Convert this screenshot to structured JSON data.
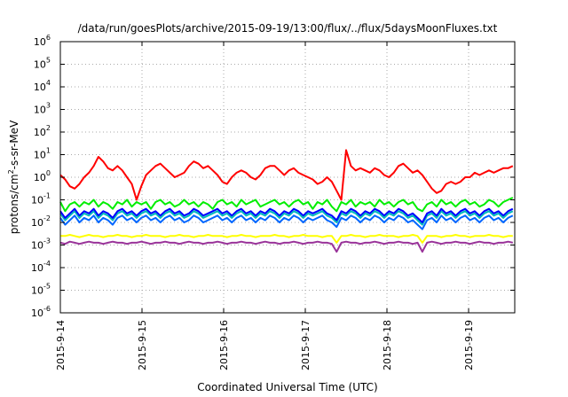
{
  "chart_data": {
    "type": "line",
    "title": "/data/run/goesPlots/archive/2015-09-19/13:00/flux/../flux/5daysMoonFluxes.txt",
    "xlabel": "Coordinated Universal Time (UTC)",
    "ylabel_base": "protons/cm",
    "ylabel_sup": "2",
    "ylabel_rest": "-s-sr-MeV",
    "yscale": "log",
    "ylim_exp": [
      -6,
      6
    ],
    "y_tick_base": "10",
    "y_tick_exponents": [
      "-6",
      "-5",
      "-4",
      "-3",
      "-2",
      "-1",
      "0",
      "1",
      "2",
      "3",
      "4",
      "5",
      "6"
    ],
    "x_range_days": [
      "2015-9-14",
      "2015-9-19 13:00"
    ],
    "x_tick_labels": [
      "2015-9-14",
      "2015-9-15",
      "2015-9-16",
      "2015-9-17",
      "2015-9-18",
      "2015-9-19"
    ],
    "grid": true,
    "legend": "none",
    "series": [
      {
        "color": "#ff0000",
        "log10_values": [
          0.1,
          -0.1,
          -0.4,
          -0.5,
          -0.3,
          0,
          0.2,
          0.5,
          0.9,
          0.7,
          0.4,
          0.3,
          0.5,
          0.3,
          0,
          -0.3,
          -1.0,
          -0.4,
          0.1,
          0.3,
          0.5,
          0.6,
          0.4,
          0.2,
          0,
          0.1,
          0.2,
          0.5,
          0.7,
          0.6,
          0.4,
          0.5,
          0.3,
          0.1,
          -0.2,
          -0.3,
          0,
          0.2,
          0.3,
          0.2,
          0,
          -0.1,
          0.1,
          0.4,
          0.5,
          0.5,
          0.3,
          0.1,
          0.3,
          0.4,
          0.2,
          0.1,
          0,
          -0.1,
          -0.3,
          -0.2,
          0,
          -0.2,
          -0.6,
          -1.0,
          1.2,
          0.5,
          0.3,
          0.4,
          0.3,
          0.2,
          0.4,
          0.3,
          0.1,
          0,
          0.2,
          0.5,
          0.6,
          0.4,
          0.2,
          0.3,
          0.1,
          -0.2,
          -0.5,
          -0.7,
          -0.6,
          -0.3,
          -0.2,
          -0.3,
          -0.2,
          0,
          0,
          0.2,
          0.1,
          0.2,
          0.3,
          0.2,
          0.3,
          0.4,
          0.4,
          0.5
        ]
      },
      {
        "color": "#00ee00",
        "log10_values": [
          -1.1,
          -1.5,
          -1.2,
          -1.1,
          -1.3,
          -1.1,
          -1.2,
          -1.0,
          -1.3,
          -1.1,
          -1.2,
          -1.4,
          -1.1,
          -1.2,
          -1.0,
          -1.3,
          -1.1,
          -1.2,
          -1.1,
          -1.4,
          -1.1,
          -1.0,
          -1.2,
          -1.1,
          -1.3,
          -1.2,
          -1.0,
          -1.2,
          -1.1,
          -1.3,
          -1.1,
          -1.2,
          -1.4,
          -1.1,
          -1.0,
          -1.2,
          -1.1,
          -1.3,
          -1.0,
          -1.2,
          -1.1,
          -1.0,
          -1.3,
          -1.2,
          -1.1,
          -1.0,
          -1.2,
          -1.1,
          -1.3,
          -1.1,
          -1.0,
          -1.2,
          -1.1,
          -1.4,
          -1.1,
          -1.2,
          -1.0,
          -1.3,
          -1.5,
          -1.1,
          -1.2,
          -1.0,
          -1.3,
          -1.1,
          -1.2,
          -1.1,
          -1.3,
          -1.0,
          -1.2,
          -1.1,
          -1.3,
          -1.1,
          -1.0,
          -1.2,
          -1.1,
          -1.4,
          -1.5,
          -1.2,
          -1.1,
          -1.3,
          -1.0,
          -1.2,
          -1.1,
          -1.3,
          -1.1,
          -1.0,
          -1.2,
          -1.1,
          -1.3,
          -1.2,
          -1.0,
          -1.1,
          -1.3,
          -1.1,
          -1.0,
          -0.9
        ]
      },
      {
        "color": "#00bbbb",
        "log10_values": [
          -1.6,
          -1.9,
          -1.7,
          -1.5,
          -1.8,
          -1.6,
          -1.7,
          -1.5,
          -1.8,
          -1.6,
          -1.7,
          -1.9,
          -1.6,
          -1.5,
          -1.7,
          -1.6,
          -1.8,
          -1.6,
          -1.5,
          -1.7,
          -1.6,
          -1.8,
          -1.6,
          -1.5,
          -1.7,
          -1.6,
          -1.8,
          -1.7,
          -1.5,
          -1.6,
          -1.8,
          -1.7,
          -1.6,
          -1.5,
          -1.7,
          -1.6,
          -1.8,
          -1.6,
          -1.5,
          -1.7,
          -1.6,
          -1.8,
          -1.6,
          -1.7,
          -1.5,
          -1.6,
          -1.8,
          -1.6,
          -1.7,
          -1.5,
          -1.6,
          -1.8,
          -1.6,
          -1.7,
          -1.6,
          -1.5,
          -1.7,
          -1.8,
          -2.0,
          -1.6,
          -1.7,
          -1.5,
          -1.6,
          -1.8,
          -1.6,
          -1.7,
          -1.5,
          -1.6,
          -1.8,
          -1.6,
          -1.7,
          -1.5,
          -1.6,
          -1.8,
          -1.7,
          -1.9,
          -2.1,
          -1.7,
          -1.6,
          -1.8,
          -1.5,
          -1.7,
          -1.6,
          -1.8,
          -1.6,
          -1.5,
          -1.7,
          -1.6,
          -1.8,
          -1.6,
          -1.5,
          -1.7,
          -1.6,
          -1.8,
          -1.6,
          -1.5
        ]
      },
      {
        "color": "#0000ff",
        "log10_values": [
          -1.5,
          -1.8,
          -1.6,
          -1.4,
          -1.7,
          -1.5,
          -1.6,
          -1.4,
          -1.7,
          -1.5,
          -1.6,
          -1.8,
          -1.5,
          -1.4,
          -1.6,
          -1.5,
          -1.7,
          -1.5,
          -1.4,
          -1.6,
          -1.5,
          -1.7,
          -1.5,
          -1.4,
          -1.6,
          -1.5,
          -1.7,
          -1.6,
          -1.4,
          -1.5,
          -1.7,
          -1.6,
          -1.5,
          -1.4,
          -1.6,
          -1.5,
          -1.7,
          -1.5,
          -1.4,
          -1.6,
          -1.5,
          -1.7,
          -1.5,
          -1.6,
          -1.4,
          -1.5,
          -1.7,
          -1.5,
          -1.6,
          -1.4,
          -1.5,
          -1.7,
          -1.5,
          -1.6,
          -1.5,
          -1.4,
          -1.6,
          -1.7,
          -1.9,
          -1.5,
          -1.6,
          -1.4,
          -1.5,
          -1.7,
          -1.5,
          -1.6,
          -1.4,
          -1.5,
          -1.7,
          -1.5,
          -1.6,
          -1.4,
          -1.5,
          -1.7,
          -1.6,
          -1.8,
          -2.0,
          -1.6,
          -1.5,
          -1.7,
          -1.4,
          -1.6,
          -1.5,
          -1.7,
          -1.5,
          -1.4,
          -1.6,
          -1.5,
          -1.7,
          -1.5,
          -1.4,
          -1.6,
          -1.5,
          -1.7,
          -1.5,
          -1.4
        ]
      },
      {
        "color": "#0066ff",
        "log10_values": [
          -1.8,
          -2.1,
          -1.9,
          -1.7,
          -2.0,
          -1.8,
          -1.9,
          -1.7,
          -2.0,
          -1.8,
          -1.9,
          -2.1,
          -1.8,
          -1.7,
          -1.9,
          -1.8,
          -2.0,
          -1.8,
          -1.7,
          -1.9,
          -1.8,
          -2.0,
          -1.8,
          -1.7,
          -1.9,
          -1.8,
          -2.0,
          -1.9,
          -1.7,
          -1.8,
          -2.0,
          -1.9,
          -1.8,
          -1.7,
          -1.9,
          -1.8,
          -2.0,
          -1.8,
          -1.7,
          -1.9,
          -1.8,
          -2.0,
          -1.8,
          -1.9,
          -1.7,
          -1.8,
          -2.0,
          -1.8,
          -1.9,
          -1.7,
          -1.8,
          -2.0,
          -1.8,
          -1.9,
          -1.8,
          -1.7,
          -1.9,
          -2.0,
          -2.2,
          -1.8,
          -1.9,
          -1.7,
          -1.8,
          -2.0,
          -1.8,
          -1.9,
          -1.7,
          -1.8,
          -2.0,
          -1.8,
          -1.9,
          -1.7,
          -1.8,
          -2.0,
          -1.9,
          -2.1,
          -2.3,
          -1.9,
          -1.8,
          -2.0,
          -1.7,
          -1.9,
          -1.8,
          -2.0,
          -1.8,
          -1.7,
          -1.9,
          -1.8,
          -2.0,
          -1.8,
          -1.7,
          -1.9,
          -1.8,
          -2.0,
          -1.8,
          -1.7
        ]
      },
      {
        "color": "#ffff00",
        "log10_values": [
          -2.6,
          -2.6,
          -2.55,
          -2.6,
          -2.65,
          -2.6,
          -2.55,
          -2.6,
          -2.6,
          -2.65,
          -2.6,
          -2.6,
          -2.55,
          -2.6,
          -2.6,
          -2.65,
          -2.6,
          -2.6,
          -2.55,
          -2.6,
          -2.6,
          -2.6,
          -2.65,
          -2.6,
          -2.6,
          -2.55,
          -2.6,
          -2.6,
          -2.65,
          -2.6,
          -2.6,
          -2.55,
          -2.6,
          -2.6,
          -2.6,
          -2.65,
          -2.6,
          -2.6,
          -2.55,
          -2.6,
          -2.6,
          -2.65,
          -2.6,
          -2.6,
          -2.6,
          -2.55,
          -2.6,
          -2.6,
          -2.65,
          -2.6,
          -2.6,
          -2.55,
          -2.6,
          -2.6,
          -2.6,
          -2.65,
          -2.6,
          -2.6,
          -2.9,
          -2.6,
          -2.6,
          -2.55,
          -2.6,
          -2.6,
          -2.65,
          -2.6,
          -2.6,
          -2.55,
          -2.6,
          -2.6,
          -2.6,
          -2.65,
          -2.6,
          -2.6,
          -2.55,
          -2.6,
          -2.9,
          -2.6,
          -2.6,
          -2.6,
          -2.65,
          -2.6,
          -2.6,
          -2.55,
          -2.6,
          -2.6,
          -2.65,
          -2.6,
          -2.6,
          -2.6,
          -2.55,
          -2.6,
          -2.6,
          -2.65,
          -2.6,
          -2.6
        ]
      },
      {
        "color": "#993399",
        "log10_values": [
          -2.9,
          -2.95,
          -2.85,
          -2.9,
          -2.95,
          -2.9,
          -2.85,
          -2.9,
          -2.9,
          -2.95,
          -2.9,
          -2.85,
          -2.9,
          -2.9,
          -2.95,
          -2.9,
          -2.9,
          -2.85,
          -2.9,
          -2.95,
          -2.9,
          -2.9,
          -2.85,
          -2.9,
          -2.9,
          -2.95,
          -2.9,
          -2.85,
          -2.9,
          -2.9,
          -2.95,
          -2.9,
          -2.9,
          -2.85,
          -2.9,
          -2.95,
          -2.9,
          -2.9,
          -2.85,
          -2.9,
          -2.9,
          -2.95,
          -2.9,
          -2.85,
          -2.9,
          -2.9,
          -2.95,
          -2.9,
          -2.9,
          -2.85,
          -2.9,
          -2.95,
          -2.9,
          -2.9,
          -2.85,
          -2.9,
          -2.9,
          -2.95,
          -3.3,
          -2.9,
          -2.85,
          -2.9,
          -2.9,
          -2.95,
          -2.9,
          -2.9,
          -2.85,
          -2.9,
          -2.95,
          -2.9,
          -2.9,
          -2.85,
          -2.9,
          -2.9,
          -2.95,
          -2.9,
          -3.3,
          -2.9,
          -2.85,
          -2.9,
          -2.95,
          -2.9,
          -2.9,
          -2.85,
          -2.9,
          -2.9,
          -2.95,
          -2.9,
          -2.85,
          -2.9,
          -2.9,
          -2.95,
          -2.9,
          -2.9,
          -2.85,
          -2.9
        ]
      }
    ]
  }
}
